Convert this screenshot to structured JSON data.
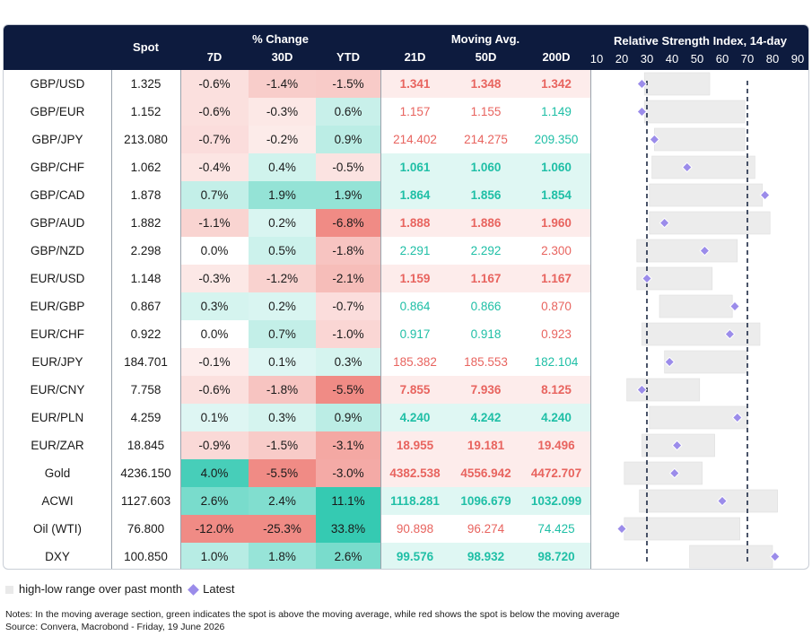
{
  "header": {
    "spot": "Spot",
    "pct_change": "% Change",
    "col_7d": "7D",
    "col_30d": "30D",
    "col_ytd": "YTD",
    "moving_avg": "Moving Avg.",
    "col_21d": "21D",
    "col_50d": "50D",
    "col_200d": "200D",
    "rsi_title": "Relative Strength Index, 14-day"
  },
  "chart_data": {
    "type": "table",
    "rsi_axis": {
      "min": 10,
      "max": 90,
      "ticks": [
        "10",
        "20",
        "30",
        "40",
        "50",
        "60",
        "70",
        "80",
        "90"
      ],
      "threshold_lines": [
        30,
        70
      ]
    },
    "rows": [
      {
        "name": "GBP/USD",
        "spot": "1.325",
        "d7": "-0.6%",
        "d30": "-1.4%",
        "ytd": "-1.5%",
        "ma21": "1.341",
        "ma50": "1.348",
        "ma200": "1.342",
        "rsi": 28,
        "low": 29,
        "high": 55
      },
      {
        "name": "GBP/EUR",
        "spot": "1.152",
        "d7": "-0.6%",
        "d30": "-0.3%",
        "ytd": "0.6%",
        "ma21": "1.157",
        "ma50": "1.155",
        "ma200": "1.149",
        "rsi": 28,
        "low": 29,
        "high": 69
      },
      {
        "name": "GBP/JPY",
        "spot": "213.080",
        "d7": "-0.7%",
        "d30": "-0.2%",
        "ytd": "0.9%",
        "ma21": "214.402",
        "ma50": "214.275",
        "ma200": "209.350",
        "rsi": 33,
        "low": 33,
        "high": 69
      },
      {
        "name": "GBP/CHF",
        "spot": "1.062",
        "d7": "-0.4%",
        "d30": "0.4%",
        "ytd": "-0.5%",
        "ma21": "1.061",
        "ma50": "1.060",
        "ma200": "1.060",
        "rsi": 46,
        "low": 32,
        "high": 73
      },
      {
        "name": "GBP/CAD",
        "spot": "1.878",
        "d7": "0.7%",
        "d30": "1.9%",
        "ytd": "1.9%",
        "ma21": "1.864",
        "ma50": "1.856",
        "ma200": "1.854",
        "rsi": 77,
        "low": 31,
        "high": 76
      },
      {
        "name": "GBP/AUD",
        "spot": "1.882",
        "d7": "-1.1%",
        "d30": "0.2%",
        "ytd": "-6.8%",
        "ma21": "1.888",
        "ma50": "1.886",
        "ma200": "1.960",
        "rsi": 37,
        "low": 31,
        "high": 79
      },
      {
        "name": "GBP/NZD",
        "spot": "2.298",
        "d7": "0.0%",
        "d30": "0.5%",
        "ytd": "-1.8%",
        "ma21": "2.291",
        "ma50": "2.292",
        "ma200": "2.300",
        "rsi": 53,
        "low": 26,
        "high": 66
      },
      {
        "name": "EUR/USD",
        "spot": "1.148",
        "d7": "-0.3%",
        "d30": "-1.2%",
        "ytd": "-2.1%",
        "ma21": "1.159",
        "ma50": "1.167",
        "ma200": "1.167",
        "rsi": 30,
        "low": 26,
        "high": 56
      },
      {
        "name": "EUR/GBP",
        "spot": "0.867",
        "d7": "0.3%",
        "d30": "0.2%",
        "ytd": "-0.7%",
        "ma21": "0.864",
        "ma50": "0.866",
        "ma200": "0.870",
        "rsi": 65,
        "low": 35,
        "high": 64
      },
      {
        "name": "EUR/CHF",
        "spot": "0.922",
        "d7": "0.0%",
        "d30": "0.7%",
        "ytd": "-1.0%",
        "ma21": "0.917",
        "ma50": "0.918",
        "ma200": "0.923",
        "rsi": 63,
        "low": 28,
        "high": 75
      },
      {
        "name": "EUR/JPY",
        "spot": "184.701",
        "d7": "-0.1%",
        "d30": "0.1%",
        "ytd": "0.3%",
        "ma21": "185.382",
        "ma50": "185.553",
        "ma200": "182.104",
        "rsi": 39,
        "low": 37,
        "high": 70
      },
      {
        "name": "EUR/CNY",
        "spot": "7.758",
        "d7": "-0.6%",
        "d30": "-1.8%",
        "ytd": "-5.5%",
        "ma21": "7.855",
        "ma50": "7.936",
        "ma200": "8.125",
        "rsi": 28,
        "low": 22,
        "high": 51
      },
      {
        "name": "EUR/PLN",
        "spot": "4.259",
        "d7": "0.1%",
        "d30": "0.3%",
        "ytd": "0.9%",
        "ma21": "4.240",
        "ma50": "4.242",
        "ma200": "4.240",
        "rsi": 66,
        "low": 31,
        "high": 70
      },
      {
        "name": "EUR/ZAR",
        "spot": "18.845",
        "d7": "-0.9%",
        "d30": "-1.5%",
        "ytd": "-3.1%",
        "ma21": "18.955",
        "ma50": "19.181",
        "ma200": "19.496",
        "rsi": 42,
        "low": 28,
        "high": 57
      },
      {
        "name": "Gold",
        "spot": "4236.150",
        "d7": "4.0%",
        "d30": "-5.5%",
        "ytd": "-3.0%",
        "ma21": "4382.538",
        "ma50": "4556.942",
        "ma200": "4472.707",
        "rsi": 41,
        "low": 21,
        "high": 52
      },
      {
        "name": "ACWI",
        "spot": "1127.603",
        "d7": "2.6%",
        "d30": "2.4%",
        "ytd": "11.1%",
        "ma21": "1118.281",
        "ma50": "1096.679",
        "ma200": "1032.099",
        "rsi": 60,
        "low": 27,
        "high": 82
      },
      {
        "name": "Oil (WTI)",
        "spot": "76.800",
        "d7": "-12.0%",
        "d30": "-25.3%",
        "ytd": "33.8%",
        "ma21": "90.898",
        "ma50": "96.274",
        "ma200": "74.425",
        "rsi": 20,
        "low": 21,
        "high": 67
      },
      {
        "name": "DXY",
        "spot": "100.850",
        "d7": "1.0%",
        "d30": "1.8%",
        "ytd": "2.6%",
        "ma21": "99.576",
        "ma50": "98.932",
        "ma200": "98.720",
        "rsi": 81,
        "low": 47,
        "high": 80
      }
    ]
  },
  "legend": {
    "range_label": "high-low range over past month",
    "latest_label": "Latest"
  },
  "notes": {
    "line1": "Notes: In the moving average section, green indicates the spot is above the moving average, while red shows the spot is below the moving average",
    "line2": "Source: Convera, Macrobond - Friday, 19 June 2026"
  },
  "colors": {
    "header_bg": "#0d1b3e",
    "ma_green": "#1fbfa6",
    "ma_red": "#e8645f",
    "range_bar": "#ececec",
    "diamond": "#9b8cea"
  }
}
